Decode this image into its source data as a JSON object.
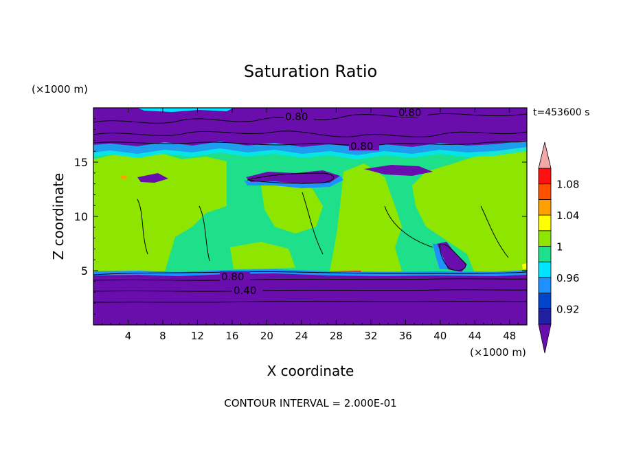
{
  "chart_data": {
    "type": "heatmap",
    "title": "Saturation Ratio",
    "xlabel": "X coordinate",
    "ylabel": "Z coordinate",
    "x_units": "(×1000 m)",
    "z_units": "(×1000 m)",
    "xlim": [
      0,
      50
    ],
    "ylim": [
      0,
      20
    ],
    "x_ticks": [
      4,
      8,
      12,
      16,
      20,
      24,
      28,
      32,
      36,
      40,
      44,
      48
    ],
    "y_ticks": [
      5,
      10,
      15
    ],
    "time_label": "t=453600 s",
    "footer": "CONTOUR INTERVAL = 2.000E-01",
    "contour_labels": [
      "0.80",
      "0.80",
      "0.80",
      "0.80",
      "0.40"
    ],
    "colorbar": {
      "levels": [
        0.9,
        0.92,
        0.94,
        0.96,
        0.98,
        1.0,
        1.02,
        1.04,
        1.06,
        1.08,
        1.1
      ],
      "tick_labels": [
        "0.92",
        "0.96",
        "1",
        "1.04",
        "1.08"
      ],
      "colors": [
        "#5a22a8",
        "#2020a0",
        "#0044cc",
        "#1e90ff",
        "#00e5ff",
        "#1fe08a",
        "#8ee600",
        "#ffff00",
        "#ffa000",
        "#ff5000",
        "#ff1010",
        "#f2a0a0"
      ],
      "under_color": "#6a0dad",
      "over_color": "#f2a8a8"
    },
    "regions": {
      "lower_dry_layer": {
        "z": [
          0,
          4.6
        ],
        "value": "< 0.90",
        "contours": [
          0.4,
          0.8
        ]
      },
      "mid_layer": {
        "z": [
          4.6,
          15.5
        ],
        "value_range": [
          0.98,
          1.02
        ]
      },
      "upper_dry_layer": {
        "z": [
          17,
          20
        ],
        "value": "< 0.90",
        "contours": [
          0.8
        ]
      }
    }
  }
}
